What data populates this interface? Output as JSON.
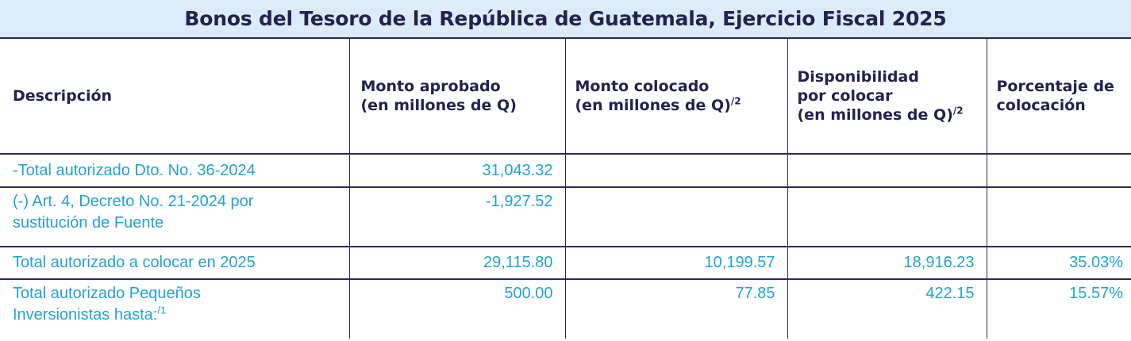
{
  "title": "Bonos del Tesoro de la República de Guatemala, Ejercicio Fiscal 2025",
  "headers": {
    "descripcion": "Descripción",
    "monto_aprobado": [
      "Monto aprobado",
      "(en millones de Q)"
    ],
    "monto_colocado": [
      "Monto colocado",
      "(en millones de Q)"
    ],
    "monto_colocado_note": "/2",
    "disponibilidad": [
      "Disponibilidad",
      "por colocar",
      "(en millones de Q)"
    ],
    "disponibilidad_note": "/2",
    "porcentaje": [
      "Porcentaje de",
      "colocación"
    ]
  },
  "rows": [
    {
      "descripcion": [
        "-Total autorizado Dto. No. 36-2024"
      ],
      "note": "",
      "monto_aprobado": "31,043.32",
      "monto_colocado": "",
      "disponibilidad": "",
      "porcentaje": ""
    },
    {
      "descripcion": [
        "(-) Art. 4, Decreto No. 21-2024 por",
        "sustitución de Fuente"
      ],
      "note": "",
      "monto_aprobado": "-1,927.52",
      "monto_colocado": "",
      "disponibilidad": "",
      "porcentaje": ""
    },
    {
      "descripcion": [
        "Total autorizado a colocar en 2025"
      ],
      "note": "",
      "monto_aprobado": "29,115.80",
      "monto_colocado": "10,199.57",
      "disponibilidad": "18,916.23",
      "porcentaje": "35.03%"
    },
    {
      "descripcion": [
        "Total autorizado Pequeños",
        "Inversionistas hasta:"
      ],
      "note": "/1",
      "monto_aprobado": "500.00",
      "monto_colocado": "77.85",
      "disponibilidad": "422.15",
      "porcentaje": "15.57%"
    }
  ],
  "colors": {
    "title_background": "#dcebfa",
    "header_text": "#22224e",
    "body_text": "#23a2cf",
    "rule": "#2a2a52"
  }
}
